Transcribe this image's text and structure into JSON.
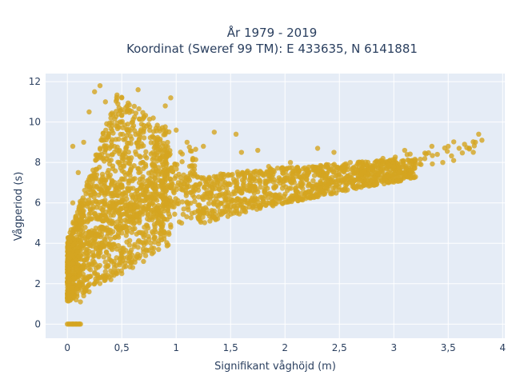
{
  "chart_data": {
    "type": "scatter",
    "title_line1": "År 1979 - 2019",
    "title_line2": "Koordinat (Sweref 99 TM): E 433635, N 6141881",
    "xlabel": "Signifikant våghöjd (m)",
    "ylabel": "Vågperiod (s)",
    "xlim": [
      -0.2,
      4.02
    ],
    "ylim": [
      -0.7,
      12.4
    ],
    "x_ticks": [
      {
        "value": 0,
        "label": "0"
      },
      {
        "value": 0.5,
        "label": "0,5"
      },
      {
        "value": 1,
        "label": "1"
      },
      {
        "value": 1.5,
        "label": "1,5"
      },
      {
        "value": 2,
        "label": "2"
      },
      {
        "value": 2.5,
        "label": "2,5"
      },
      {
        "value": 3,
        "label": "3"
      },
      {
        "value": 3.5,
        "label": "3,5"
      },
      {
        "value": 4,
        "label": "4"
      }
    ],
    "y_ticks": [
      {
        "value": 0,
        "label": "0"
      },
      {
        "value": 2,
        "label": "2"
      },
      {
        "value": 4,
        "label": "4"
      },
      {
        "value": 6,
        "label": "6"
      },
      {
        "value": 8,
        "label": "8"
      },
      {
        "value": 10,
        "label": "10"
      },
      {
        "value": 12,
        "label": "12"
      }
    ],
    "grid": true,
    "marker_color": "#d4a521",
    "plot_background": "#e5ecf6",
    "series": [
      {
        "points": [
          [
            0.05,
            0.0
          ],
          [
            0.08,
            0.0
          ],
          [
            0.11,
            0.0
          ],
          [
            0.04,
            1.8
          ],
          [
            0.08,
            1.2
          ],
          [
            0.12,
            1.1
          ],
          [
            0.15,
            1.4
          ],
          [
            0.2,
            1.6
          ],
          [
            0.05,
            3.0
          ],
          [
            0.1,
            2.6
          ],
          [
            0.18,
            2.2
          ],
          [
            0.25,
            2.0
          ],
          [
            0.3,
            2.3
          ],
          [
            0.35,
            2.6
          ],
          [
            0.45,
            2.9
          ],
          [
            0.55,
            3.3
          ],
          [
            0.65,
            3.8
          ],
          [
            0.75,
            4.2
          ],
          [
            0.85,
            4.5
          ],
          [
            0.95,
            4.8
          ],
          [
            1.05,
            5.0
          ],
          [
            1.2,
            5.3
          ],
          [
            1.35,
            5.6
          ],
          [
            1.5,
            5.8
          ],
          [
            1.65,
            6.0
          ],
          [
            1.8,
            6.2
          ],
          [
            1.95,
            6.4
          ],
          [
            2.1,
            6.6
          ],
          [
            2.25,
            6.8
          ],
          [
            2.4,
            7.0
          ],
          [
            2.55,
            7.2
          ],
          [
            2.7,
            7.4
          ],
          [
            2.85,
            7.6
          ],
          [
            3.0,
            7.8
          ],
          [
            3.2,
            8.1
          ],
          [
            3.4,
            8.4
          ],
          [
            3.6,
            8.7
          ],
          [
            3.75,
            9.0
          ],
          [
            3.81,
            9.1
          ],
          [
            3.78,
            9.4
          ],
          [
            3.35,
            8.8
          ],
          [
            3.55,
            8.1
          ],
          [
            3.1,
            8.6
          ],
          [
            2.9,
            8.2
          ],
          [
            2.6,
            8.0
          ],
          [
            2.3,
            7.6
          ],
          [
            2.0,
            7.2
          ],
          [
            1.7,
            6.8
          ],
          [
            1.4,
            6.4
          ],
          [
            1.1,
            6.0
          ],
          [
            0.8,
            5.5
          ],
          [
            0.05,
            6.0
          ],
          [
            0.1,
            7.5
          ],
          [
            0.15,
            9.0
          ],
          [
            0.2,
            10.5
          ],
          [
            0.25,
            11.5
          ],
          [
            0.3,
            11.8
          ],
          [
            0.35,
            11.0
          ],
          [
            0.4,
            10.2
          ],
          [
            0.45,
            9.8
          ],
          [
            0.5,
            11.2
          ],
          [
            0.55,
            10.8
          ],
          [
            0.6,
            10.0
          ],
          [
            0.65,
            11.6
          ],
          [
            0.7,
            9.5
          ],
          [
            0.8,
            9.2
          ],
          [
            0.9,
            10.8
          ],
          [
            0.95,
            11.2
          ],
          [
            1.0,
            9.6
          ],
          [
            1.1,
            9.0
          ],
          [
            1.25,
            8.8
          ],
          [
            1.35,
            9.5
          ],
          [
            1.55,
            9.4
          ],
          [
            1.6,
            8.5
          ],
          [
            1.75,
            8.6
          ],
          [
            2.3,
            8.7
          ],
          [
            2.45,
            8.5
          ],
          [
            0.05,
            8.8
          ],
          [
            0.05,
            4.5
          ],
          [
            0.12,
            4.0
          ],
          [
            0.2,
            3.6
          ],
          [
            0.22,
            5.2
          ],
          [
            0.32,
            4.6
          ],
          [
            0.42,
            5.0
          ],
          [
            0.52,
            6.5
          ],
          [
            0.62,
            7.2
          ],
          [
            0.72,
            7.8
          ],
          [
            0.82,
            8.2
          ],
          [
            0.92,
            7.4
          ],
          [
            1.02,
            7.0
          ],
          [
            1.15,
            7.6
          ],
          [
            1.3,
            7.2
          ],
          [
            1.45,
            7.0
          ],
          [
            1.6,
            7.4
          ],
          [
            1.85,
            7.8
          ],
          [
            2.05,
            8.0
          ],
          [
            2.2,
            7.4
          ],
          [
            2.5,
            7.7
          ],
          [
            2.75,
            7.9
          ],
          [
            2.95,
            7.3
          ],
          [
            3.05,
            7.5
          ],
          [
            3.25,
            7.9
          ],
          [
            3.45,
            8.0
          ],
          [
            3.5,
            8.8
          ],
          [
            3.65,
            8.9
          ],
          [
            0.08,
            5.2
          ],
          [
            0.18,
            6.8
          ],
          [
            0.28,
            8.2
          ],
          [
            0.38,
            9.4
          ],
          [
            0.48,
            8.6
          ],
          [
            0.58,
            9.3
          ],
          [
            0.68,
            8.8
          ],
          [
            0.78,
            6.8
          ],
          [
            0.88,
            6.2
          ],
          [
            0.98,
            5.8
          ],
          [
            0.06,
            2.2
          ],
          [
            0.14,
            2.8
          ],
          [
            0.24,
            3.4
          ],
          [
            0.34,
            3.9
          ],
          [
            0.44,
            4.3
          ],
          [
            0.54,
            4.8
          ],
          [
            0.64,
            5.1
          ],
          [
            0.74,
            5.4
          ],
          [
            0.4,
            2.2
          ],
          [
            0.5,
            2.5
          ],
          [
            0.6,
            2.8
          ],
          [
            0.7,
            3.1
          ]
        ]
      }
    ]
  }
}
